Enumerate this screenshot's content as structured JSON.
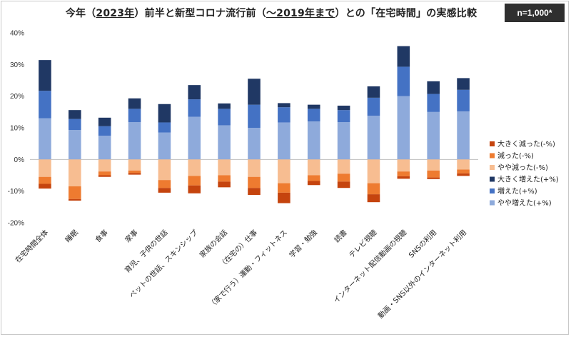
{
  "badge": "n=1,000*",
  "title_parts": [
    "今年（",
    "2023年",
    "）前半と新型コロナ流行前（",
    "〜2019年まで",
    "）との「在宅時間」の実感比較"
  ],
  "chart_data": {
    "type": "bar",
    "stacked": true,
    "ylim": [
      -20,
      40
    ],
    "yticks": [
      -20,
      -10,
      0,
      10,
      20,
      30,
      40
    ],
    "ytick_labels": [
      "-20%",
      "-10%",
      "0%",
      "10%",
      "20%",
      "30%",
      "40%"
    ],
    "grid": false,
    "legend_position": "right",
    "categories": [
      "在宅時間全体",
      "睡眠",
      "食事",
      "家事",
      "育児、子供の世話",
      "ペットの世話、スキンシップ",
      "家族の会話",
      "（在宅の）仕事",
      "（家で行う）運動・フィットネス",
      "学習・勉強",
      "読書",
      "テレビ視聴",
      "インターネット配信動画の視聴",
      "SNSの利用",
      "動画・SNS以外のインターネット利用"
    ],
    "series": [
      {
        "name": "大きく減った(-%)",
        "color": "#c5440e",
        "values": [
          -1.5,
          -0.5,
          -0.5,
          -0.5,
          -1.5,
          -2.5,
          -1.8,
          -2.2,
          -3.3,
          -1.3,
          -2.0,
          -2.5,
          -0.8,
          -0.5,
          -0.8
        ]
      },
      {
        "name": "減った(-%)",
        "color": "#ee7b30",
        "values": [
          -2.2,
          -4.0,
          -1.2,
          -0.8,
          -2.5,
          -3.0,
          -2.0,
          -3.5,
          -3.0,
          -1.8,
          -2.5,
          -3.5,
          -1.5,
          -2.2,
          -1.2
        ]
      },
      {
        "name": "やや減った(-%)",
        "color": "#f7bd91",
        "values": [
          -5.5,
          -8.5,
          -3.8,
          -3.5,
          -6.5,
          -5.2,
          -5.0,
          -5.5,
          -7.5,
          -5.0,
          -4.5,
          -7.5,
          -3.8,
          -3.5,
          -3.2
        ]
      },
      {
        "name": "やや増えた(+%)",
        "color": "#8eaadb",
        "values": [
          13.0,
          9.3,
          7.5,
          11.8,
          8.5,
          13.5,
          10.8,
          10.0,
          11.7,
          12.0,
          11.8,
          13.8,
          20.0,
          15.0,
          15.2
        ]
      },
      {
        "name": "増えた(+%)",
        "color": "#4472c4",
        "values": [
          8.7,
          3.5,
          3.0,
          4.2,
          3.2,
          5.5,
          5.2,
          7.3,
          4.8,
          4.0,
          3.8,
          5.7,
          9.3,
          5.7,
          6.8
        ]
      },
      {
        "name": "大きく増えた(+%)",
        "color": "#203864",
        "values": [
          9.7,
          2.8,
          2.7,
          3.3,
          5.8,
          4.5,
          1.7,
          8.2,
          1.3,
          1.3,
          1.4,
          3.6,
          6.5,
          4.0,
          3.7
        ]
      }
    ],
    "legend_order": [
      0,
      1,
      2,
      5,
      4,
      3
    ]
  }
}
